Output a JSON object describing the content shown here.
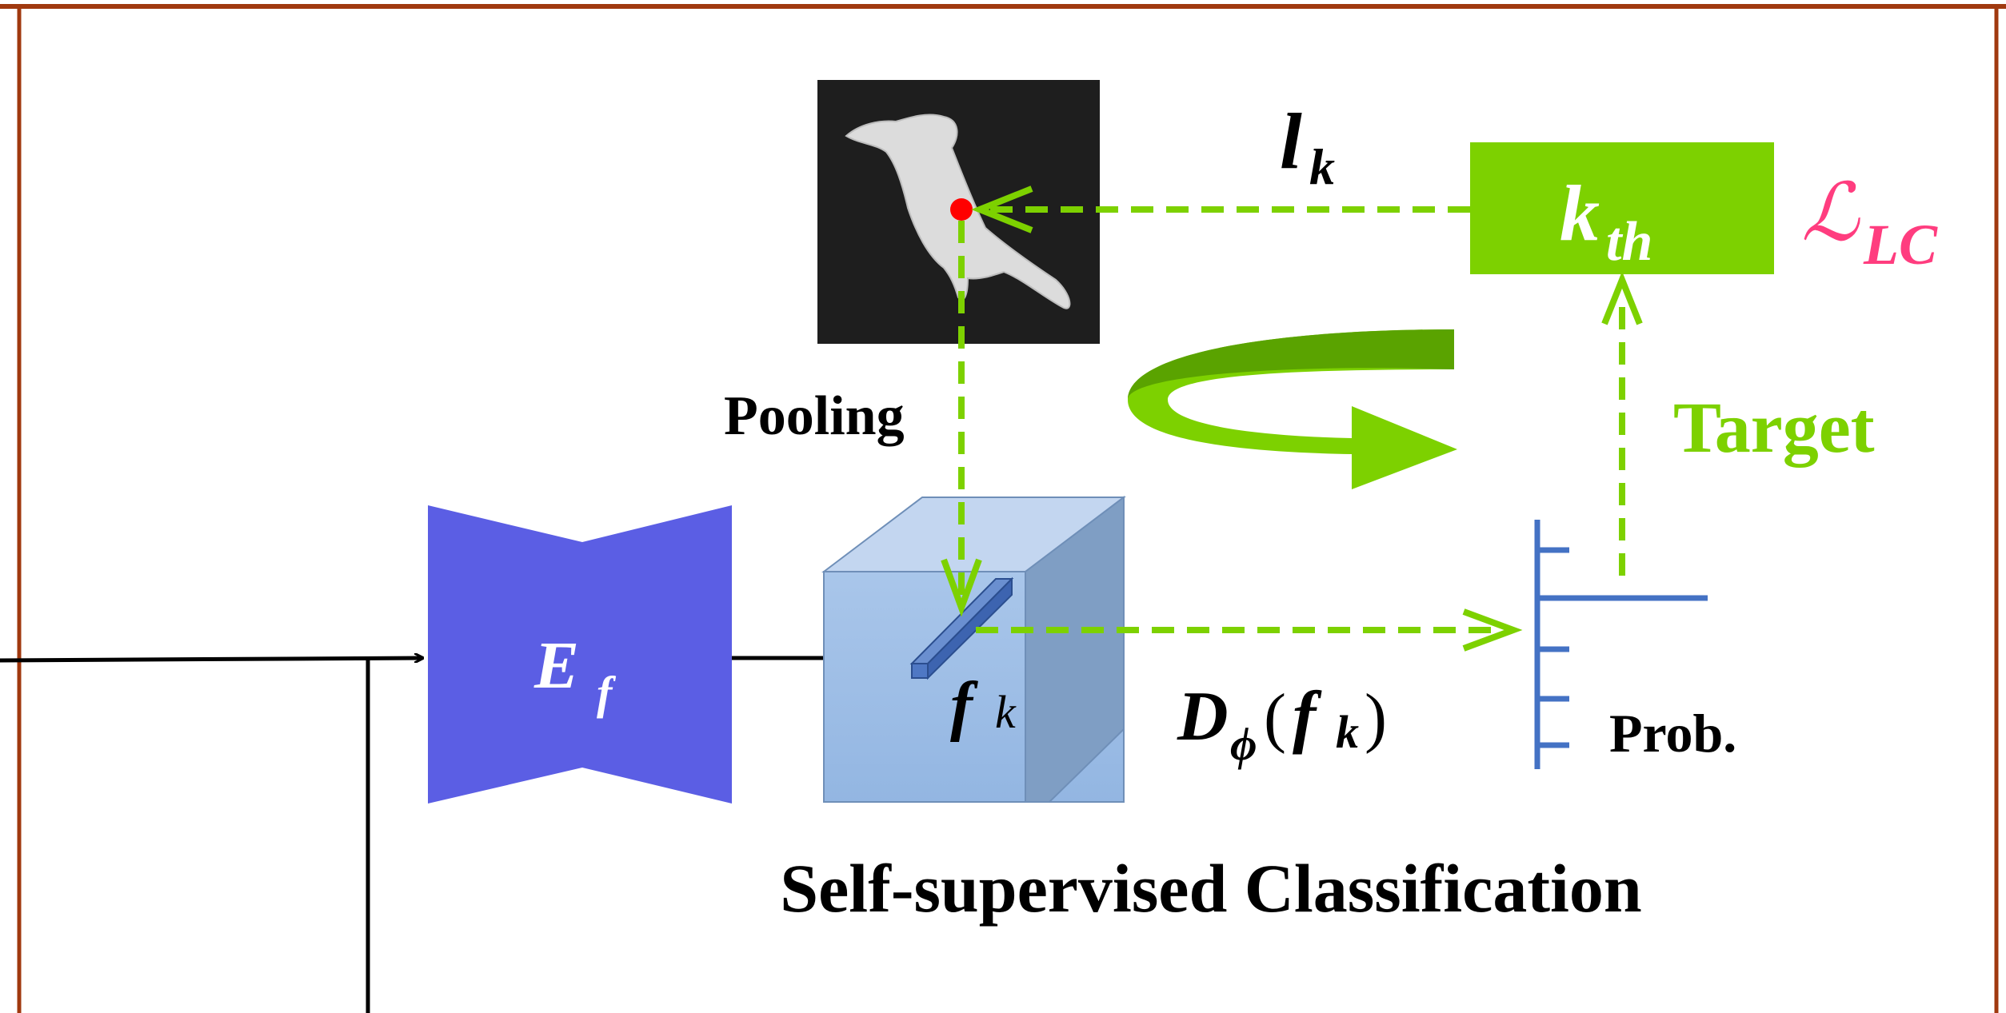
{
  "labels": {
    "pooling": "Pooling",
    "target": "Target",
    "prob": "Prob.",
    "caption": "Self-supervised Classification",
    "encoder_main": "E",
    "encoder_sub": "f",
    "feature_main": "f",
    "feature_sub": "k",
    "label_main": "l",
    "label_sub": "k",
    "kth_main": "k",
    "kth_sub": "th",
    "discriminator_D": "D",
    "discriminator_phi": "ϕ",
    "discriminator_open": "(",
    "discriminator_f": "f",
    "discriminator_k": "k",
    "discriminator_close": ")",
    "loss_main": "ℒ",
    "loss_sub": "LC"
  },
  "colors": {
    "frame": "#a0390f",
    "encoder": "#5b5ee4",
    "green": "#7dd100",
    "green_dark": "#5aa300",
    "loss": "#ff3d7f",
    "cube_front": "#9dbde6",
    "cube_top": "#c3d6f0",
    "cube_side": "#7f9ec4",
    "prob_axis": "#4472c4",
    "keypoint": "#ff0000",
    "image_bg": "#1e1e1e"
  },
  "icons": {
    "bird": "bird-silhouette",
    "cycle": "circular-arrow-icon"
  }
}
